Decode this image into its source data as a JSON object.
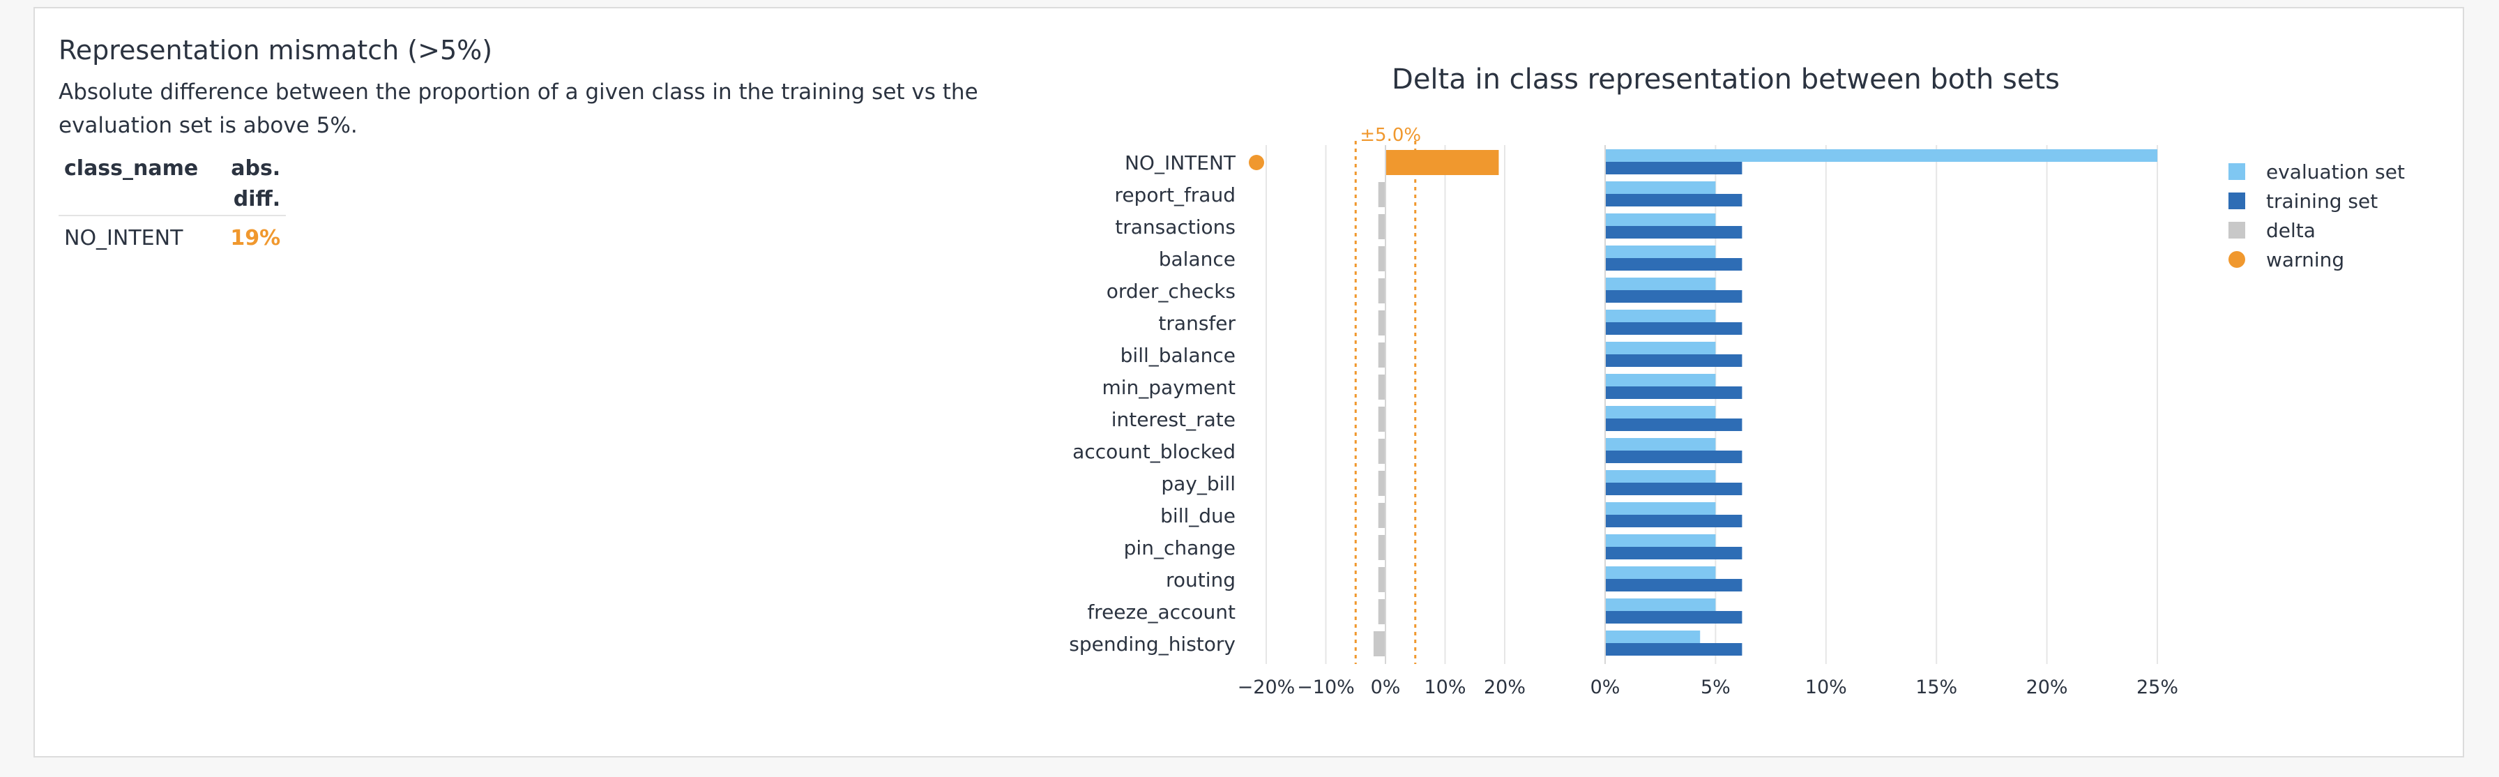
{
  "section": {
    "title": "Representation mismatch (>5%)",
    "description": "Absolute difference between the proportion of a given class in the training set vs the evaluation set is above 5%."
  },
  "table": {
    "headers": [
      "class_name",
      "abs. diff."
    ],
    "rows": [
      {
        "class_name": "NO_INTENT",
        "abs_diff": "19%"
      }
    ]
  },
  "colors": {
    "evaluation_set": "#7fc7f2",
    "training_set": "#2e6db5",
    "delta": "#c8c8c8",
    "warning": "#f0982e",
    "grid": "#e6e6e6",
    "text": "#2b3340"
  },
  "chart_data": {
    "type": "bar",
    "orientation": "horizontal",
    "title": "Delta in class representation between both sets",
    "categories": [
      "NO_INTENT",
      "report_fraud",
      "transactions",
      "balance",
      "order_checks",
      "transfer",
      "bill_balance",
      "min_payment",
      "interest_rate",
      "account_blocked",
      "pay_bill",
      "bill_due",
      "pin_change",
      "routing",
      "freeze_account",
      "spending_history"
    ],
    "warning_categories": [
      "NO_INTENT"
    ],
    "threshold_label": "±5.0%",
    "threshold": 5,
    "delta_panel": {
      "xlim": [
        -20,
        20
      ],
      "ticks": [
        "−20%",
        "−10%",
        "0%",
        "10%",
        "20%"
      ],
      "tick_values": [
        -20,
        -10,
        0,
        10,
        20
      ],
      "values": [
        19,
        -1.2,
        -1.2,
        -1.2,
        -1.2,
        -1.2,
        -1.2,
        -1.2,
        -1.2,
        -1.2,
        -1.2,
        -1.2,
        -1.2,
        -1.2,
        -1.2,
        -2
      ]
    },
    "proportion_panel": {
      "xlim": [
        0,
        25
      ],
      "ticks": [
        "0%",
        "5%",
        "10%",
        "15%",
        "20%",
        "25%"
      ],
      "tick_values": [
        0,
        5,
        10,
        15,
        20,
        25
      ],
      "series": [
        {
          "name": "evaluation set",
          "values": [
            25,
            5,
            5,
            5,
            5,
            5,
            5,
            5,
            5,
            5,
            5,
            5,
            5,
            5,
            5,
            4.3
          ]
        },
        {
          "name": "training set",
          "values": [
            6.2,
            6.2,
            6.2,
            6.2,
            6.2,
            6.2,
            6.2,
            6.2,
            6.2,
            6.2,
            6.2,
            6.2,
            6.2,
            6.2,
            6.2,
            6.2
          ]
        }
      ]
    },
    "legend": {
      "position": "right",
      "items": [
        {
          "label": "evaluation set",
          "shape": "square",
          "color": "#7fc7f2"
        },
        {
          "label": "training set",
          "shape": "square",
          "color": "#2e6db5"
        },
        {
          "label": "delta",
          "shape": "square",
          "color": "#c8c8c8"
        },
        {
          "label": "warning",
          "shape": "circle",
          "color": "#f0982e"
        }
      ]
    }
  }
}
